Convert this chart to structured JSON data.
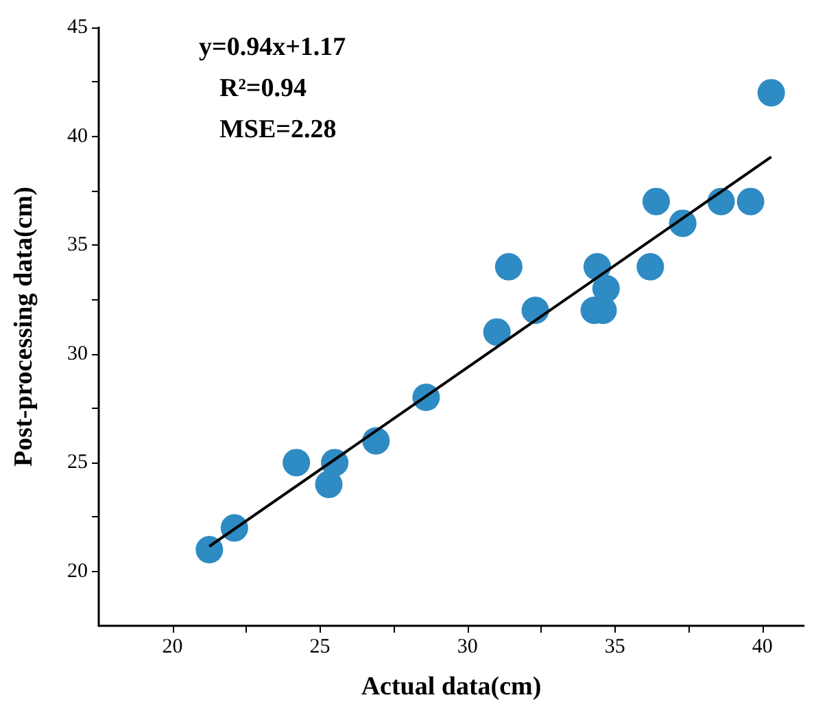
{
  "chart_data": {
    "type": "scatter",
    "xlabel": "Actual data(cm)",
    "ylabel": "Post-processing data(cm)",
    "annotations": [
      "y=0.94x+1.17",
      "R²=0.94",
      "MSE=2.28"
    ],
    "xlim": [
      17.5,
      41.4
    ],
    "ylim": [
      17.5,
      45
    ],
    "xticks": [
      20,
      {
        "value": 22.5,
        "label": null
      },
      25,
      {
        "value": 27.5,
        "label": null
      },
      30,
      {
        "value": 32.5,
        "label": null
      },
      35,
      {
        "value": 37.5,
        "label": null
      },
      40
    ],
    "yticks": [
      20,
      {
        "value": 22.5,
        "label": null
      },
      25,
      {
        "value": 27.5,
        "label": null
      },
      30,
      {
        "value": 32.5,
        "label": null
      },
      35,
      {
        "value": 37.5,
        "label": null
      },
      40,
      {
        "value": 42.5,
        "label": null
      },
      45
    ],
    "grid": false,
    "marker": "circle",
    "series": [
      {
        "color": "#2e8bc3",
        "x": [
          21.25,
          22.1,
          24.2,
          25.3,
          25.5,
          26.9,
          28.6,
          31.0,
          31.4,
          32.3,
          34.3,
          34.4,
          34.6,
          34.7,
          36.2,
          36.4,
          37.3,
          38.6,
          39.6,
          40.3
        ],
        "values": [
          21,
          22,
          25,
          24,
          25,
          26,
          28,
          31,
          34,
          32,
          32,
          34,
          32,
          33,
          34,
          37,
          36,
          37,
          37,
          42
        ]
      },
      {
        "type": "line",
        "color": "#000000",
        "marker": "none",
        "line_style": "solid",
        "x": [
          21.25,
          40.3
        ],
        "values": [
          21.15,
          39.05
        ]
      }
    ]
  }
}
